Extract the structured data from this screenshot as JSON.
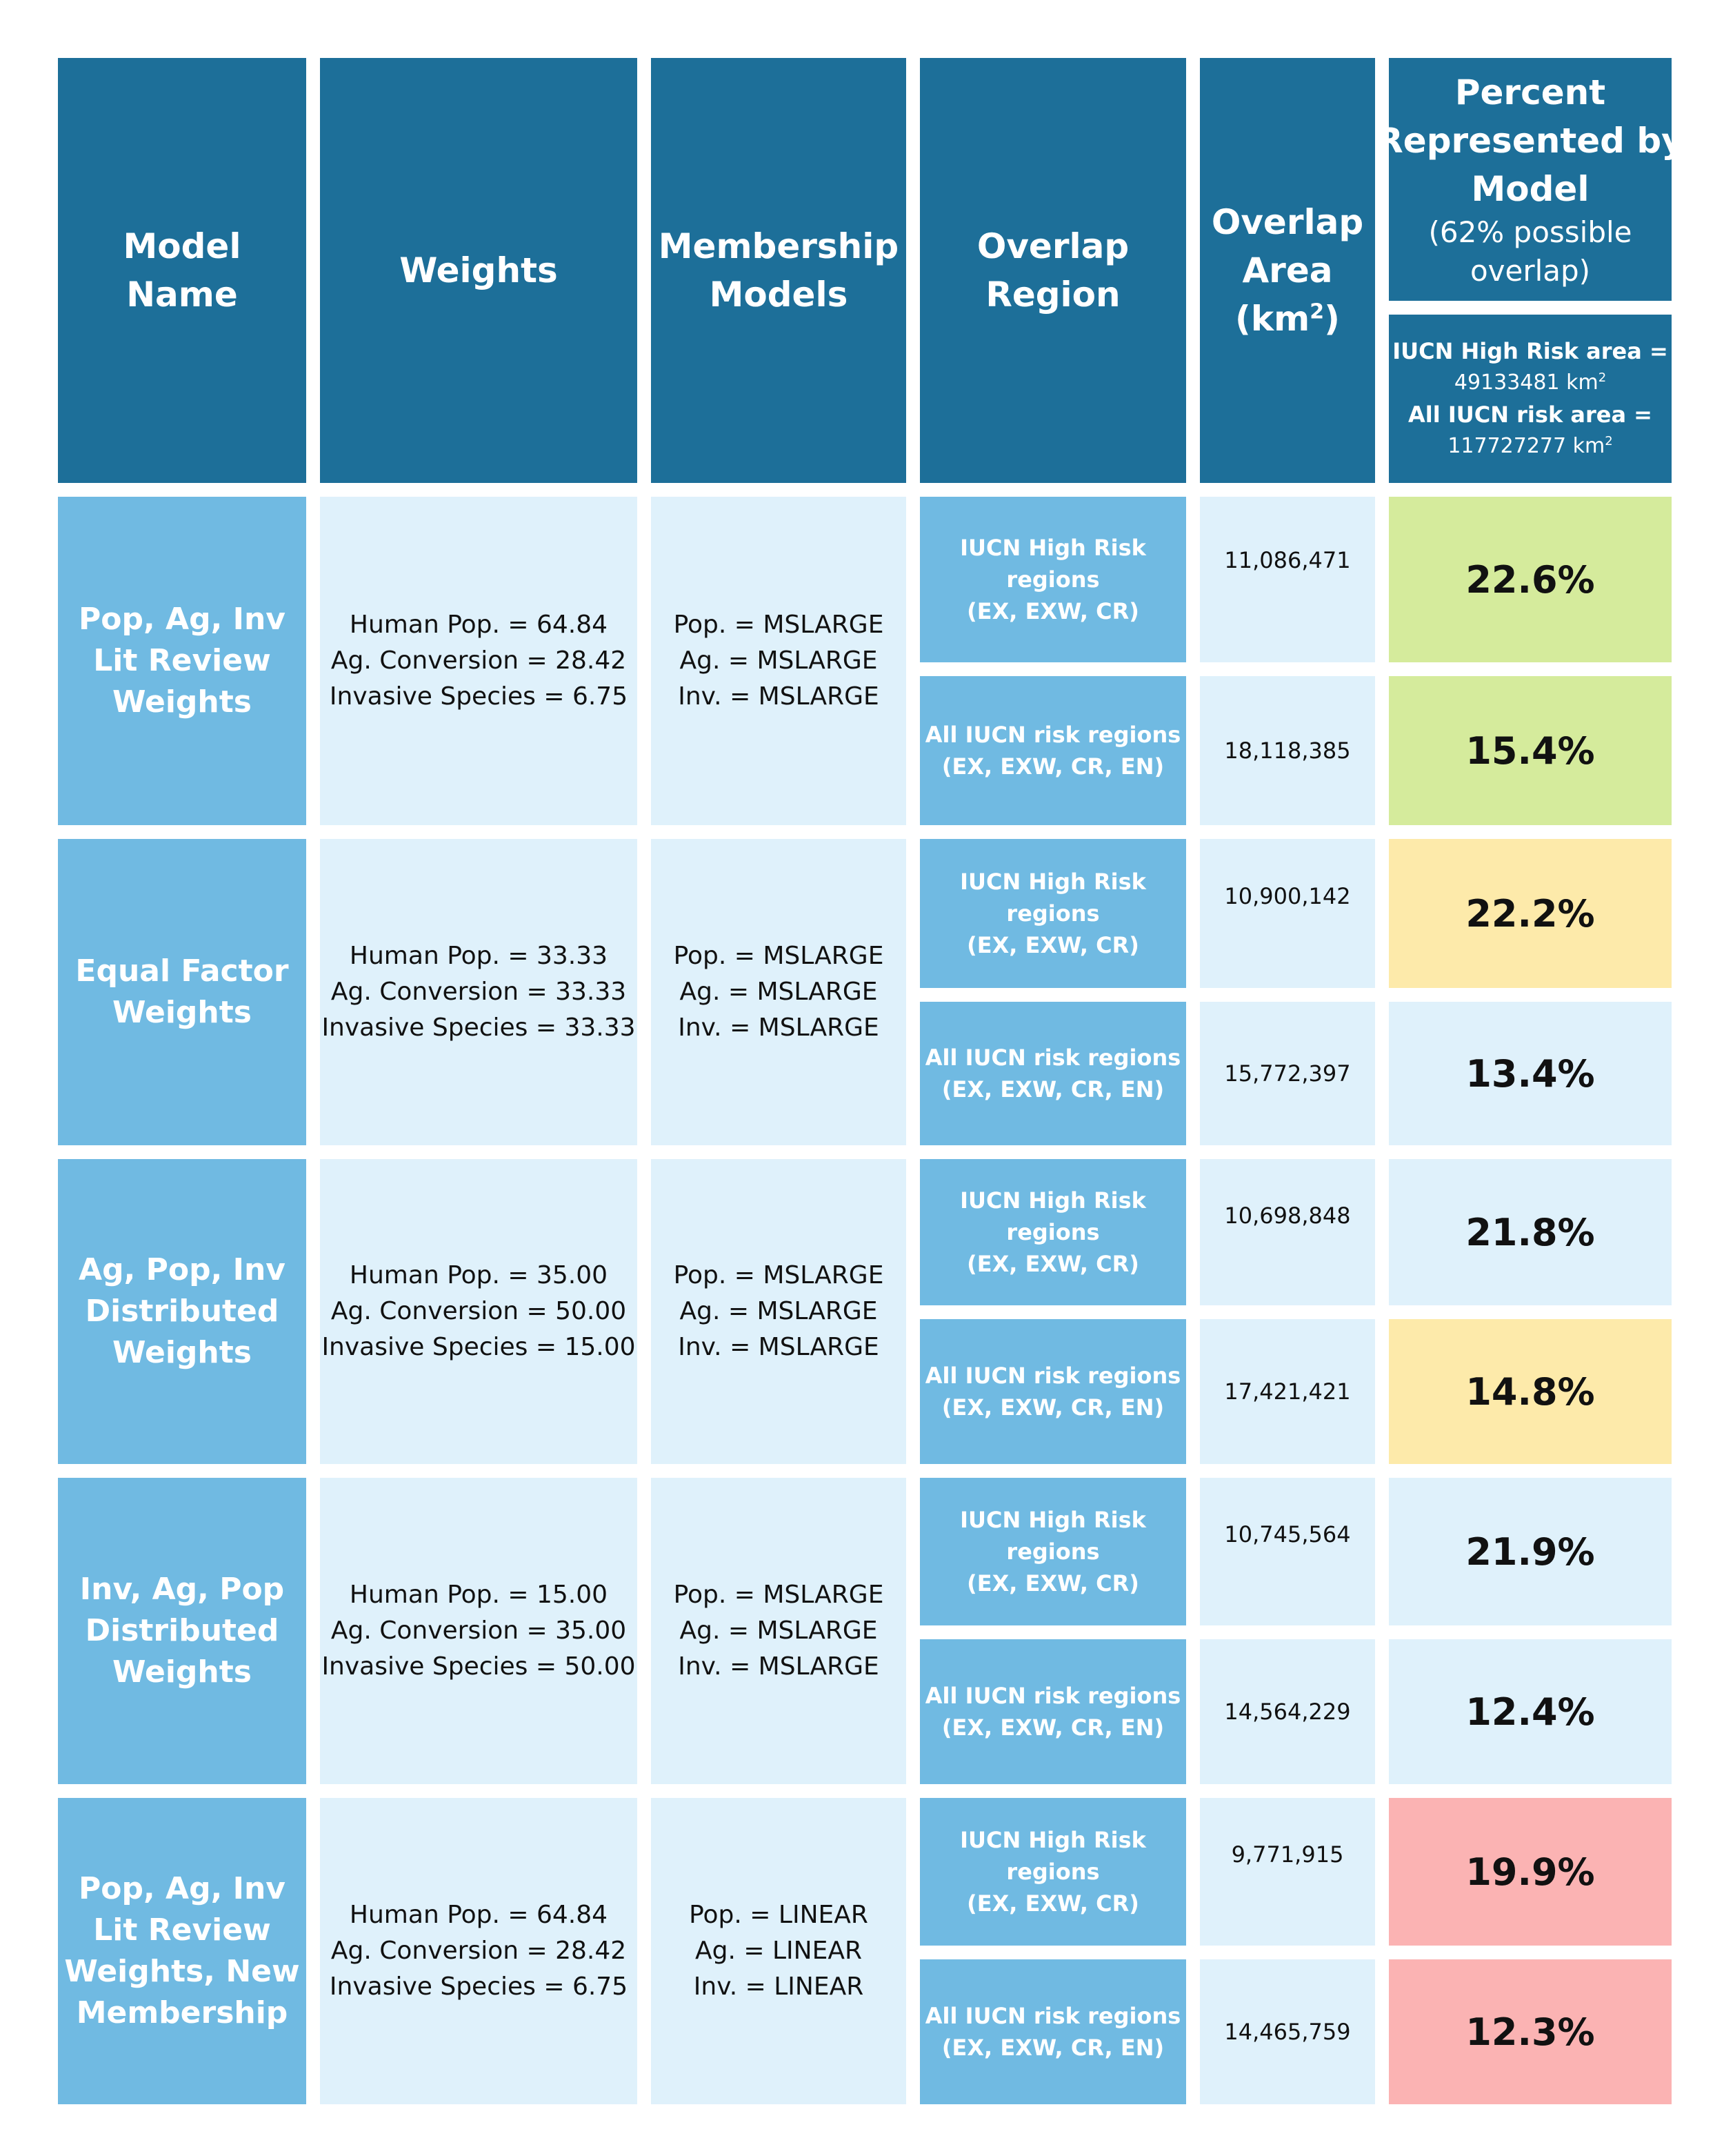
{
  "header": {
    "model_name": [
      "Model",
      "Name"
    ],
    "weights": "Weights",
    "membership": [
      "Membership",
      "Models"
    ],
    "overlap_region": [
      "Overlap",
      "Region"
    ],
    "overlap_area": [
      "Overlap",
      "Area",
      "(km",
      "2",
      ")"
    ],
    "percent": [
      "Percent",
      "Represented by",
      "Model"
    ],
    "percent_note": [
      "(62% possible",
      "overlap)"
    ],
    "iucn_high_label": "IUCN High Risk area =",
    "iucn_high_value": "49133481 km",
    "iucn_all_label": "All IUCN risk area =",
    "iucn_all_value": "117727277 km",
    "sup2": "2"
  },
  "regions": {
    "high": [
      "IUCN High Risk",
      "regions",
      "(EX, EXW, CR)"
    ],
    "all": [
      "All IUCN risk regions",
      "(EX, EXW, CR, EN)"
    ]
  },
  "colors": {
    "header": "#1d6f99",
    "name_bg": "#70bae2",
    "light_bg": "#dff1fb",
    "green": "#d5eb9c",
    "yellow": "#fdeaaa",
    "red": "#fbb3b3"
  },
  "models": [
    {
      "name": [
        "Pop, Ag, Inv",
        "Lit Review",
        "Weights"
      ],
      "weights": [
        "Human Pop. = 64.84",
        "Ag. Conversion = 28.42",
        "Invasive Species = 6.75"
      ],
      "membership": [
        "Pop. = MSLARGE",
        "Ag. = MSLARGE",
        "Inv. = MSLARGE"
      ],
      "high": {
        "area": "11,086,471",
        "pct": "22.6%",
        "color": "green"
      },
      "all": {
        "area": "18,118,385",
        "pct": "15.4%",
        "color": "green"
      }
    },
    {
      "name": [
        "Equal Factor",
        "Weights"
      ],
      "weights": [
        "Human Pop. = 33.33",
        "Ag. Conversion = 33.33",
        "Invasive Species = 33.33"
      ],
      "membership": [
        "Pop. = MSLARGE",
        "Ag. = MSLARGE",
        "Inv. = MSLARGE"
      ],
      "high": {
        "area": "10,900,142",
        "pct": "22.2%",
        "color": "yellow"
      },
      "all": {
        "area": "15,772,397",
        "pct": "13.4%",
        "color": "light"
      }
    },
    {
      "name": [
        "Ag, Pop, Inv",
        "Distributed",
        "Weights"
      ],
      "weights": [
        "Human Pop. = 35.00",
        "Ag. Conversion = 50.00",
        "Invasive Species = 15.00"
      ],
      "membership": [
        "Pop. = MSLARGE",
        "Ag. = MSLARGE",
        "Inv. = MSLARGE"
      ],
      "high": {
        "area": "10,698,848",
        "pct": "21.8%",
        "color": "light"
      },
      "all": {
        "area": "17,421,421",
        "pct": "14.8%",
        "color": "yellow"
      }
    },
    {
      "name": [
        "Inv, Ag, Pop",
        "Distributed",
        "Weights"
      ],
      "weights": [
        "Human Pop. = 15.00",
        "Ag. Conversion = 35.00",
        "Invasive Species = 50.00"
      ],
      "membership": [
        "Pop. = MSLARGE",
        "Ag. = MSLARGE",
        "Inv. = MSLARGE"
      ],
      "high": {
        "area": "10,745,564",
        "pct": "21.9%",
        "color": "light"
      },
      "all": {
        "area": "14,564,229",
        "pct": "12.4%",
        "color": "light"
      }
    },
    {
      "name": [
        "Pop, Ag, Inv",
        "Lit Review",
        "Weights, New",
        "Membership"
      ],
      "weights": [
        "Human Pop. = 64.84",
        "Ag. Conversion = 28.42",
        "Invasive Species = 6.75"
      ],
      "membership": [
        "Pop. = LINEAR",
        "Ag. = LINEAR",
        "Inv. = LINEAR"
      ],
      "high": {
        "area": "9,771,915",
        "pct": "19.9%",
        "color": "red"
      },
      "all": {
        "area": "14,465,759",
        "pct": "12.3%",
        "color": "red"
      }
    }
  ]
}
